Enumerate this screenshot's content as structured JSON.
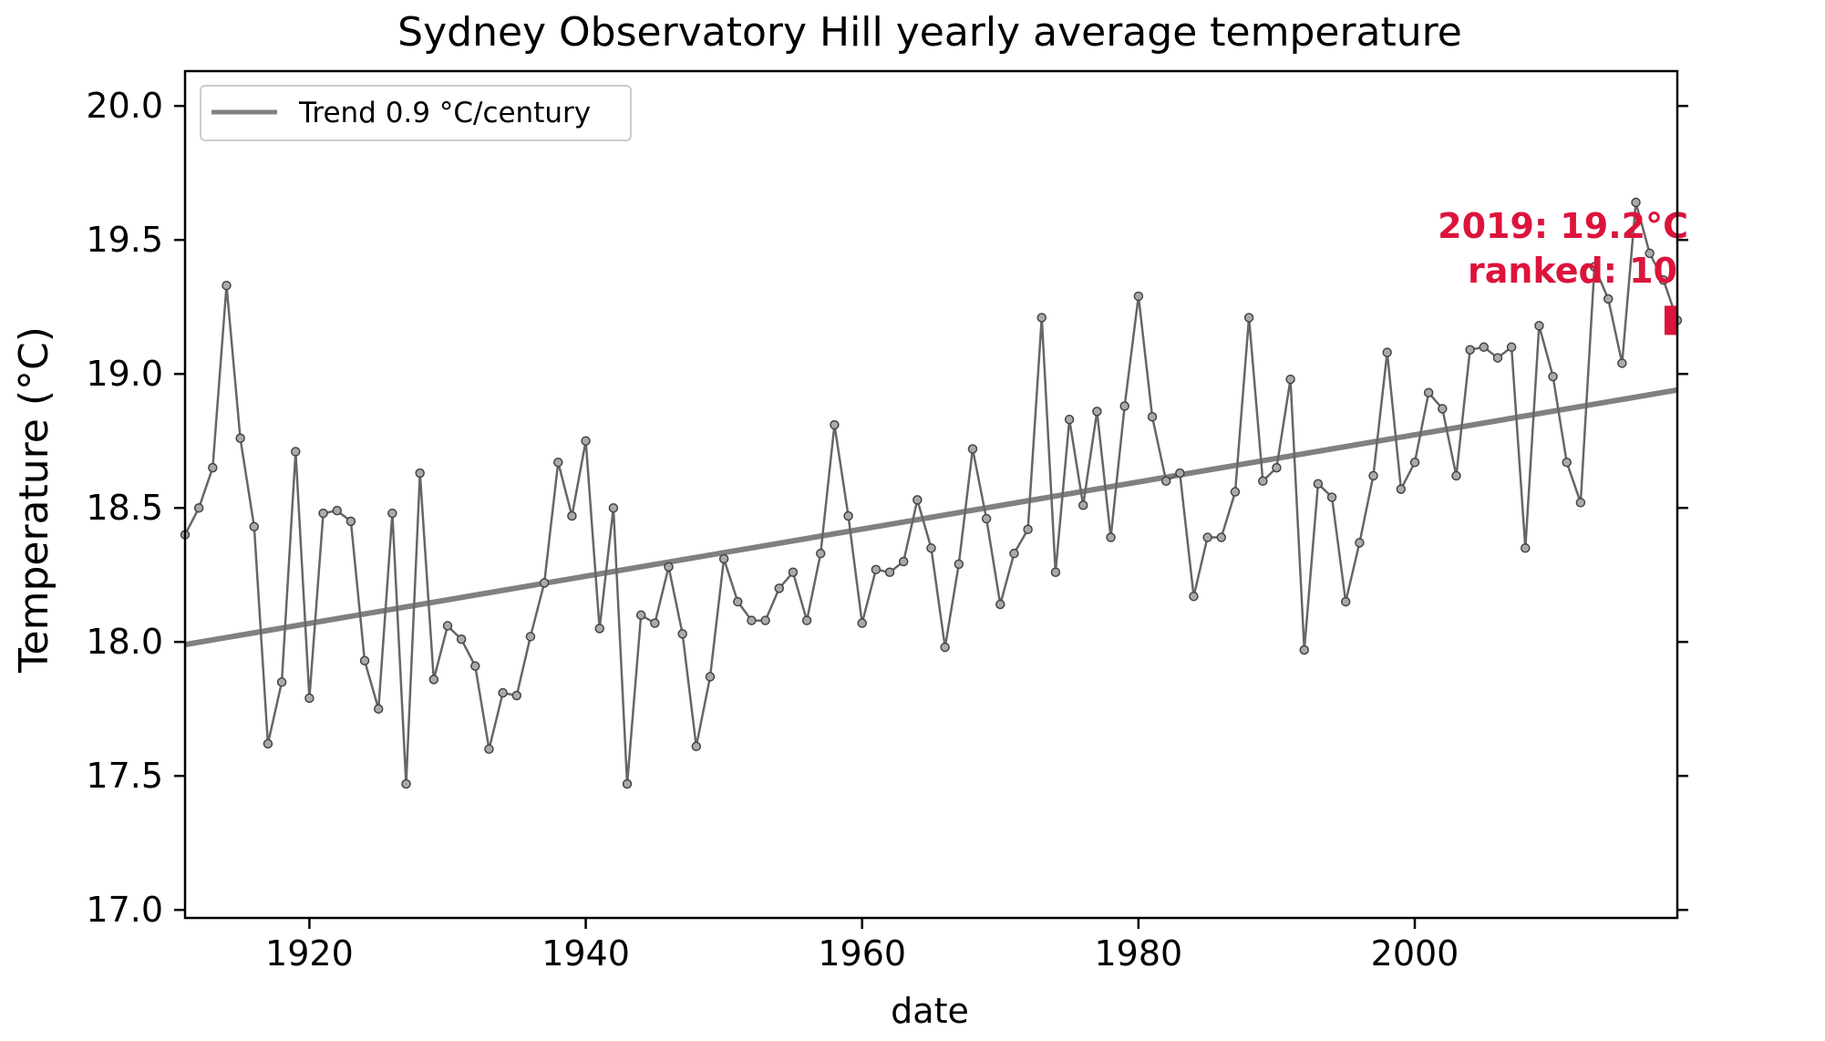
{
  "chart_data": {
    "type": "line",
    "title": "Sydney Observatory Hill yearly average temperature",
    "xlabel": "date",
    "ylabel": "Temperature (°C)",
    "xlim": [
      1911,
      2019
    ],
    "ylim": [
      16.97,
      20.13
    ],
    "x_ticks": [
      1920,
      1940,
      1960,
      1980,
      2000
    ],
    "y_ticks": [
      17.0,
      17.5,
      18.0,
      18.5,
      19.0,
      19.5,
      20.0
    ],
    "y_tick_labels": [
      "17.0",
      "17.5",
      "18.0",
      "18.5",
      "19.0",
      "19.5",
      "20.0"
    ],
    "grid": false,
    "legend": {
      "position": "upper-left",
      "entries": [
        "Trend 0.9 °C/century"
      ]
    },
    "series": [
      {
        "kind": "yearly",
        "color": "#666666",
        "x": [
          1911,
          1912,
          1913,
          1914,
          1915,
          1916,
          1917,
          1918,
          1919,
          1920,
          1921,
          1922,
          1923,
          1924,
          1925,
          1926,
          1927,
          1928,
          1929,
          1930,
          1931,
          1932,
          1933,
          1934,
          1935,
          1936,
          1937,
          1938,
          1939,
          1940,
          1941,
          1942,
          1943,
          1944,
          1945,
          1946,
          1947,
          1948,
          1949,
          1950,
          1951,
          1952,
          1953,
          1954,
          1955,
          1956,
          1957,
          1958,
          1959,
          1960,
          1961,
          1962,
          1963,
          1964,
          1965,
          1966,
          1967,
          1968,
          1969,
          1970,
          1971,
          1972,
          1973,
          1974,
          1975,
          1976,
          1977,
          1978,
          1979,
          1980,
          1981,
          1982,
          1983,
          1984,
          1985,
          1986,
          1987,
          1988,
          1989,
          1990,
          1991,
          1992,
          1993,
          1994,
          1995,
          1996,
          1997,
          1998,
          1999,
          2000,
          2001,
          2002,
          2003,
          2004,
          2005,
          2006,
          2007,
          2008,
          2009,
          2010,
          2011,
          2012,
          2013,
          2014,
          2015,
          2016,
          2017,
          2018,
          2019
        ],
        "values": [
          18.4,
          18.5,
          18.65,
          19.33,
          18.76,
          18.43,
          17.62,
          17.85,
          18.71,
          17.79,
          18.48,
          18.49,
          18.45,
          17.93,
          17.75,
          18.48,
          17.47,
          18.63,
          17.86,
          18.06,
          18.01,
          17.91,
          17.6,
          17.81,
          17.8,
          18.02,
          18.22,
          18.67,
          18.47,
          18.75,
          18.05,
          18.5,
          17.47,
          18.1,
          18.07,
          18.28,
          18.03,
          17.61,
          17.87,
          18.31,
          18.15,
          18.08,
          18.08,
          18.2,
          18.26,
          18.08,
          18.33,
          18.81,
          18.47,
          18.07,
          18.27,
          18.26,
          18.3,
          18.53,
          18.35,
          17.98,
          18.29,
          18.72,
          18.46,
          18.14,
          18.33,
          18.42,
          19.21,
          18.26,
          18.83,
          18.51,
          18.86,
          18.39,
          18.88,
          19.29,
          18.84,
          18.6,
          18.63,
          18.17,
          18.39,
          18.39,
          18.56,
          19.21,
          18.6,
          18.65,
          18.98,
          17.97,
          18.59,
          18.54,
          18.15,
          18.37,
          18.62,
          19.08,
          18.57,
          18.67,
          18.93,
          18.87,
          18.62,
          19.09,
          19.1,
          19.06,
          19.1,
          18.35,
          19.18,
          18.99,
          18.67,
          18.52,
          19.4,
          19.28,
          19.04,
          19.64,
          19.45,
          19.35,
          19.2
        ]
      },
      {
        "name": "Trend 0.9 °C/century",
        "kind": "trend",
        "color": "#808080",
        "x": [
          1911,
          2019
        ],
        "values": [
          17.99,
          18.94
        ]
      }
    ],
    "highlight": {
      "year": 2019,
      "value": 19.2,
      "color": "#dc143c",
      "label_line1": "2019: 19.2°C",
      "label_line2": "ranked: 10"
    }
  }
}
